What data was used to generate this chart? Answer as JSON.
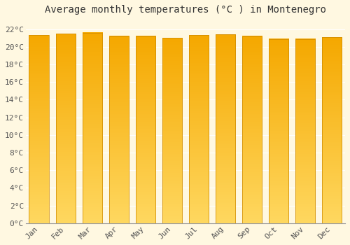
{
  "months": [
    "Jan",
    "Feb",
    "Mar",
    "Apr",
    "May",
    "Jun",
    "Jul",
    "Aug",
    "Sep",
    "Oct",
    "Nov",
    "Dec"
  ],
  "values": [
    21.3,
    21.5,
    21.6,
    21.2,
    21.2,
    21.0,
    21.3,
    21.4,
    21.2,
    20.9,
    20.9,
    21.1
  ],
  "bar_color": "#FFA500",
  "bar_color_gradient_top": "#FFD060",
  "background_color": "#FFF8E1",
  "grid_color": "#FFFFFF",
  "title": "Average monthly temperatures (°C ) in Montenegro",
  "title_fontsize": 10,
  "tick_label_fontsize": 8,
  "ylim": [
    0,
    23
  ],
  "yticks": [
    0,
    2,
    4,
    6,
    8,
    10,
    12,
    14,
    16,
    18,
    20,
    22
  ],
  "bar_width": 0.75
}
